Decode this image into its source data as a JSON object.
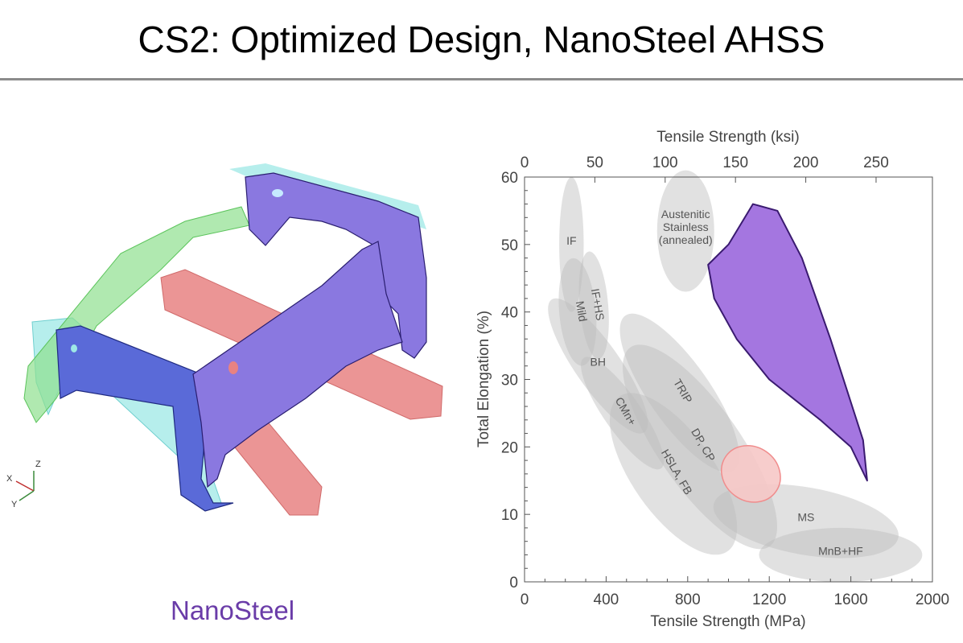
{
  "slide": {
    "title": "CS2: Optimized Design, NanoSteel AHSS",
    "caption": "NanoSteel",
    "caption_color": "#6a3ca8"
  },
  "triad": {
    "x": "X",
    "y": "Y",
    "z": "Z"
  },
  "model_colors": {
    "purple": "#8a78e0",
    "blue": "#5a6ad8",
    "green": "#8fe08f",
    "cyan": "#9ee8e6",
    "red": "#e88282"
  },
  "chart_data": {
    "type": "area",
    "xlabel": "Tensile Strength (MPa)",
    "ylabel": "Total Elongation (%)",
    "x2label": "Tensile Strength (ksi)",
    "xlim": [
      0,
      2000
    ],
    "ylim": [
      0,
      60
    ],
    "xticks": [
      "0",
      "400",
      "800",
      "1200",
      "1600",
      "2000"
    ],
    "yticks": [
      "0",
      "10",
      "20",
      "30",
      "40",
      "50",
      "60"
    ],
    "x2ticks": [
      "0",
      "50",
      "100",
      "150",
      "200",
      "250"
    ],
    "grid": false,
    "regions": [
      {
        "label": "IF",
        "cx": 230,
        "cy": 50,
        "rx": 60,
        "ry": 10
      },
      {
        "label": "Mild",
        "cx": 260,
        "cy": 40,
        "rx": 90,
        "ry": 8
      },
      {
        "label": "IF+HS",
        "cx": 340,
        "cy": 41,
        "rx": 70,
        "ry": 8
      },
      {
        "label": "BH",
        "cx": 360,
        "cy": 32,
        "rx": 110,
        "ry": 12
      },
      {
        "label": "CMn+",
        "cx": 480,
        "cy": 25,
        "rx": 90,
        "ry": 10
      },
      {
        "label": "TRIP",
        "cx": 760,
        "cy": 28,
        "rx": 150,
        "ry": 14
      },
      {
        "label": "DP, CP",
        "cx": 860,
        "cy": 20,
        "rx": 200,
        "ry": 18
      },
      {
        "label": "HSLA, FB",
        "cx": 730,
        "cy": 16,
        "rx": 200,
        "ry": 14
      },
      {
        "label": "Austenitic Stainless (annealed)",
        "cx": 790,
        "cy": 52,
        "rx": 140,
        "ry": 9
      },
      {
        "label": "MS",
        "cx": 1380,
        "cy": 9,
        "rx": 460,
        "ry": 5
      },
      {
        "label": "MnB+HF",
        "cx": 1550,
        "cy": 4,
        "rx": 400,
        "ry": 4
      },
      {
        "label": "",
        "cx": 1110,
        "cy": 16,
        "rx": 150,
        "ry": 4
      }
    ],
    "nanosteel_region": {
      "label": "NanoSteel",
      "color": "#a476e0",
      "outline": [
        [
          1120,
          56
        ],
        [
          1000,
          50
        ],
        [
          900,
          47
        ],
        [
          930,
          42
        ],
        [
          1040,
          36
        ],
        [
          1200,
          30
        ],
        [
          1450,
          24
        ],
        [
          1600,
          20
        ],
        [
          1680,
          15
        ],
        [
          1660,
          21
        ],
        [
          1500,
          36
        ],
        [
          1360,
          48
        ],
        [
          1240,
          55
        ]
      ]
    }
  }
}
